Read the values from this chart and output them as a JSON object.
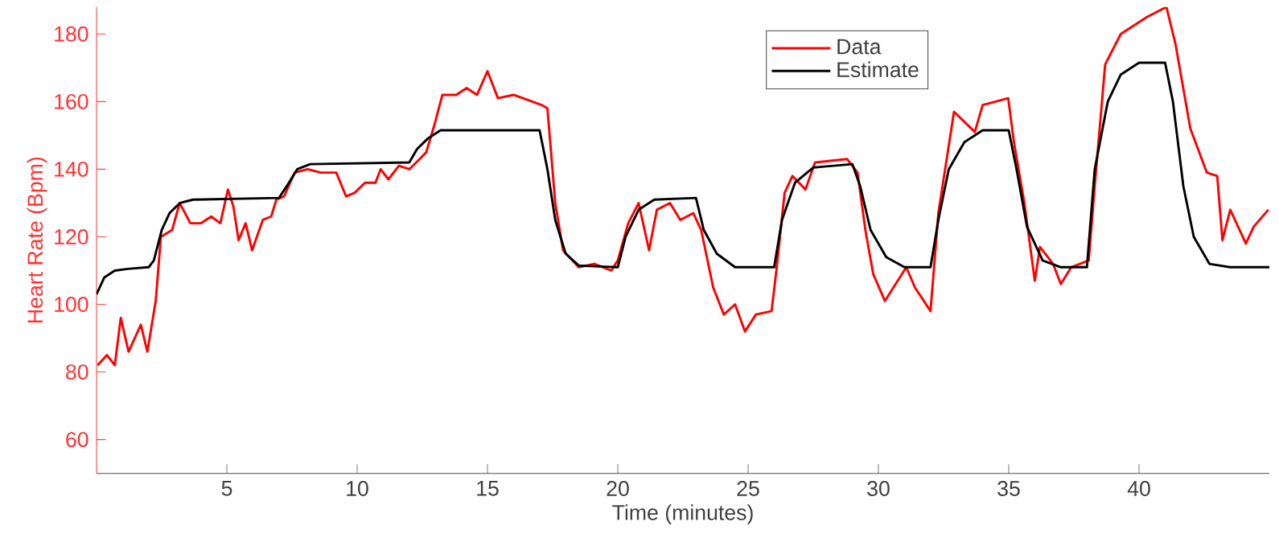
{
  "chart_data": {
    "type": "line",
    "xlabel": "Time (minutes)",
    "ylabel": "Heart Rate (Bpm)",
    "xlim": [
      0,
      45
    ],
    "ylim": [
      50,
      188
    ],
    "xticks": [
      5,
      10,
      15,
      20,
      25,
      30,
      35,
      40
    ],
    "yticks": [
      60,
      80,
      100,
      120,
      140,
      160,
      180
    ],
    "grid": false,
    "legend": "top",
    "marker": "none",
    "line_style": "solid",
    "series": [
      {
        "name": "Data",
        "color": "#ff0000",
        "x": [
          0.04,
          0.4,
          0.7,
          0.93,
          1.23,
          1.7,
          1.95,
          2.27,
          2.47,
          2.9,
          3.19,
          3.6,
          4.0,
          4.4,
          4.75,
          5.04,
          5.25,
          5.45,
          5.72,
          5.97,
          6.38,
          6.7,
          6.9,
          7.2,
          7.6,
          8.1,
          8.6,
          9.2,
          9.57,
          9.9,
          10.3,
          10.7,
          10.9,
          11.2,
          11.6,
          12.0,
          12.4,
          12.65,
          12.96,
          13.27,
          13.8,
          14.2,
          14.6,
          15.0,
          15.4,
          16.0,
          17.08,
          17.3,
          17.6,
          17.9,
          18.5,
          19.1,
          19.75,
          20.0,
          20.4,
          20.8,
          21.2,
          21.5,
          22.0,
          22.4,
          22.9,
          23.2,
          23.66,
          24.07,
          24.5,
          24.88,
          25.3,
          25.9,
          26.1,
          26.4,
          26.7,
          27.2,
          27.57,
          28.8,
          29.2,
          29.5,
          29.8,
          30.25,
          31.07,
          31.4,
          32.0,
          32.3,
          32.9,
          33.7,
          34.0,
          34.98,
          35.2,
          35.6,
          36.0,
          36.2,
          36.7,
          37.0,
          37.4,
          38.07,
          38.3,
          38.7,
          39.3,
          40.3,
          41.05,
          41.4,
          41.97,
          42.6,
          43.0,
          43.2,
          43.5,
          44.1,
          44.4,
          44.96
        ],
        "values": [
          82,
          85,
          82,
          96,
          86,
          94,
          86,
          101,
          120,
          122,
          130,
          124,
          124,
          126,
          124,
          134,
          129,
          119,
          124,
          116,
          125,
          126,
          131,
          132,
          139,
          140,
          139,
          139,
          132,
          133,
          136,
          136,
          140,
          137,
          141,
          140,
          143,
          145,
          153,
          162,
          162,
          164,
          162,
          169,
          161,
          162,
          159,
          158,
          130,
          116,
          111,
          112,
          110,
          113,
          124,
          130,
          116,
          128,
          130,
          125,
          127,
          122,
          105,
          97,
          100,
          92,
          97,
          98,
          111,
          133,
          138,
          134,
          142,
          143,
          139,
          122,
          109,
          101,
          111,
          105,
          98,
          127,
          157,
          151,
          159,
          161,
          148,
          130,
          107,
          117,
          112,
          106,
          111,
          113,
          135,
          171,
          180,
          185,
          188,
          177,
          152,
          139,
          138,
          119,
          128,
          118,
          123,
          128
        ]
      },
      {
        "name": "Estimate",
        "color": "#000000",
        "x": [
          0,
          0.3,
          0.7,
          1.2,
          2.0,
          2.2,
          2.5,
          2.8,
          3.2,
          3.7,
          7.0,
          7.3,
          7.7,
          8.2,
          12.0,
          12.3,
          12.7,
          13.2,
          17.0,
          17.3,
          17.6,
          18.0,
          18.5,
          20.0,
          20.3,
          20.8,
          21.4,
          23.0,
          23.3,
          23.8,
          24.5,
          26.0,
          26.3,
          26.8,
          27.5,
          29.0,
          29.3,
          29.7,
          30.3,
          31.0,
          32.0,
          32.3,
          32.7,
          33.3,
          34.0,
          35.0,
          35.3,
          35.7,
          36.3,
          37.0,
          38.0,
          38.3,
          38.8,
          39.3,
          40.0,
          41.0,
          41.3,
          41.7,
          42.1,
          42.7,
          43.5,
          45
        ],
        "values": [
          103,
          108,
          110,
          110.5,
          111,
          113,
          122,
          127,
          130,
          131,
          131.5,
          135,
          140,
          141.5,
          142,
          146,
          149,
          151.5,
          151.5,
          140,
          125,
          115,
          111.5,
          111,
          120,
          128,
          131,
          131.5,
          122,
          115,
          111,
          111,
          125,
          136,
          140.5,
          141.5,
          135,
          122,
          114,
          111,
          111,
          125,
          140,
          148,
          151.5,
          151.5,
          140,
          123,
          113,
          111,
          111,
          140,
          160,
          168,
          171.5,
          171.5,
          160,
          135,
          120,
          112,
          111,
          111
        ]
      }
    ]
  }
}
